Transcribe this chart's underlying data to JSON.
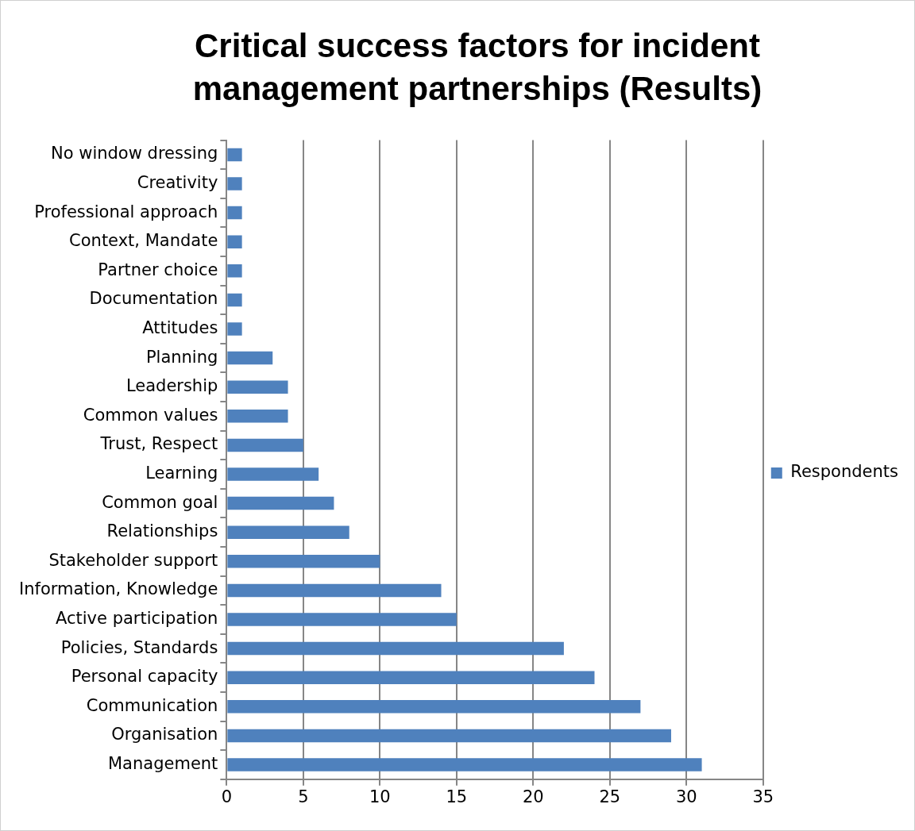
{
  "chart_data": {
    "type": "bar",
    "orientation": "horizontal",
    "title": "Critical success factors for incident management partnerships (Results)",
    "categories": [
      "No window dressing",
      "Creativity",
      "Professional approach",
      "Context, Mandate",
      "Partner choice",
      "Documentation",
      "Attitudes",
      "Planning",
      "Leadership",
      "Common values",
      "Trust, Respect",
      "Learning",
      "Common goal",
      "Relationships",
      "Stakeholder support",
      "Information, Knowledge",
      "Active participation",
      "Policies, Standards",
      "Personal capacity",
      "Communication",
      "Organisation",
      "Management"
    ],
    "series": [
      {
        "name": "Respondents",
        "color": "#4f81bd",
        "values": [
          1,
          1,
          1,
          1,
          1,
          1,
          1,
          3,
          4,
          4,
          5,
          6,
          7,
          8,
          10,
          14,
          15,
          22,
          24,
          27,
          29,
          31
        ]
      }
    ],
    "xlim": [
      0,
      35
    ],
    "xticks": [
      0,
      5,
      10,
      15,
      20,
      25,
      30,
      35
    ],
    "grid": "x",
    "legend": "right"
  }
}
